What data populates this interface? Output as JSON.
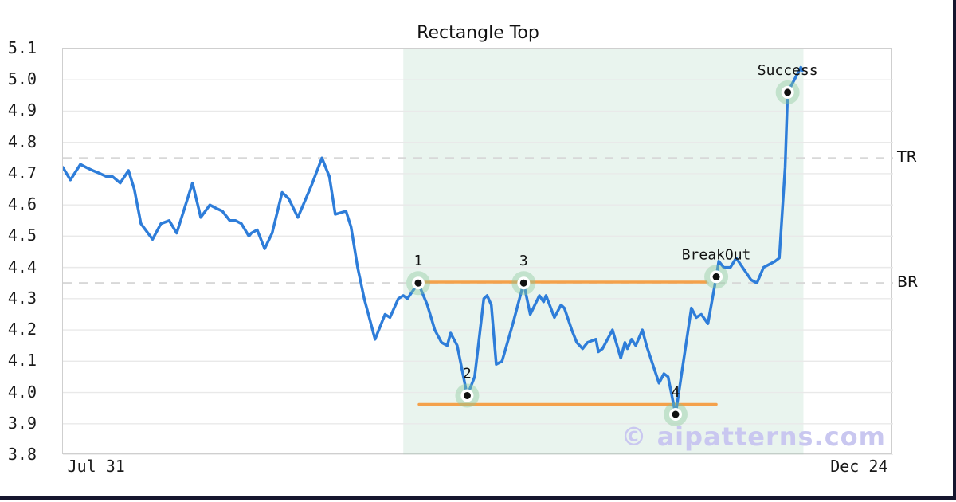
{
  "title": "Rectangle Top",
  "watermark": "© aipatterns.com",
  "colors": {
    "line": "#2e7dd9",
    "pattern_line": "#f4a14b",
    "level_dash": "#d8d8d8",
    "grid": "#e9e9e9",
    "zone_fill": "rgba(155,205,178,0.22)",
    "marker_halo": "rgba(135,200,152,0.40)",
    "marker_ring": "#ffffff",
    "marker_dot": "#111111",
    "watermark": "#c9c7f0",
    "frame": "#16162e",
    "text": "#111111"
  },
  "chart_data": {
    "type": "line",
    "title": "Rectangle Top",
    "x_axis": {
      "start_label": "Jul 31",
      "end_label": "Dec 24",
      "ticks": [
        {
          "pos": 0.041,
          "label": "Jul 31"
        },
        {
          "pos": 0.96,
          "label": "Dec 24"
        }
      ]
    },
    "y_axis": {
      "min": 3.8,
      "max": 5.1,
      "tick_step": 0.1,
      "tick_labels": [
        "5.1",
        "5.0",
        "4.9",
        "4.8",
        "4.7",
        "4.6",
        "4.5",
        "4.4",
        "4.3",
        "4.2",
        "4.1",
        "4.0",
        "3.9",
        "3.8"
      ],
      "grid": true
    },
    "series": [
      {
        "name": "price",
        "points": [
          [
            0.0,
            4.72
          ],
          [
            0.009,
            4.68
          ],
          [
            0.021,
            4.73
          ],
          [
            0.028,
            4.72
          ],
          [
            0.036,
            4.71
          ],
          [
            0.045,
            4.7
          ],
          [
            0.053,
            4.69
          ],
          [
            0.06,
            4.69
          ],
          [
            0.069,
            4.67
          ],
          [
            0.079,
            4.71
          ],
          [
            0.086,
            4.65
          ],
          [
            0.094,
            4.54
          ],
          [
            0.108,
            4.49
          ],
          [
            0.118,
            4.54
          ],
          [
            0.128,
            4.55
          ],
          [
            0.137,
            4.51
          ],
          [
            0.156,
            4.67
          ],
          [
            0.166,
            4.56
          ],
          [
            0.177,
            4.6
          ],
          [
            0.184,
            4.59
          ],
          [
            0.192,
            4.58
          ],
          [
            0.201,
            4.55
          ],
          [
            0.208,
            4.55
          ],
          [
            0.215,
            4.54
          ],
          [
            0.224,
            4.5
          ],
          [
            0.227,
            4.51
          ],
          [
            0.234,
            4.52
          ],
          [
            0.243,
            4.46
          ],
          [
            0.252,
            4.51
          ],
          [
            0.264,
            4.64
          ],
          [
            0.272,
            4.62
          ],
          [
            0.283,
            4.56
          ],
          [
            0.299,
            4.66
          ],
          [
            0.312,
            4.75
          ],
          [
            0.321,
            4.69
          ],
          [
            0.328,
            4.57
          ],
          [
            0.341,
            4.58
          ],
          [
            0.347,
            4.53
          ],
          [
            0.355,
            4.4
          ],
          [
            0.363,
            4.3
          ],
          [
            0.376,
            4.17
          ],
          [
            0.388,
            4.25
          ],
          [
            0.394,
            4.24
          ],
          [
            0.404,
            4.3
          ],
          [
            0.41,
            4.31
          ],
          [
            0.415,
            4.3
          ],
          [
            0.428,
            4.35
          ],
          [
            0.439,
            4.28
          ],
          [
            0.448,
            4.2
          ],
          [
            0.456,
            4.16
          ],
          [
            0.463,
            4.15
          ],
          [
            0.467,
            4.19
          ],
          [
            0.475,
            4.15
          ],
          [
            0.487,
            3.99
          ],
          [
            0.496,
            4.05
          ],
          [
            0.507,
            4.3
          ],
          [
            0.511,
            4.31
          ],
          [
            0.516,
            4.28
          ],
          [
            0.522,
            4.09
          ],
          [
            0.529,
            4.1
          ],
          [
            0.542,
            4.22
          ],
          [
            0.555,
            4.35
          ],
          [
            0.563,
            4.25
          ],
          [
            0.574,
            4.31
          ],
          [
            0.579,
            4.29
          ],
          [
            0.582,
            4.31
          ],
          [
            0.592,
            4.24
          ],
          [
            0.6,
            4.28
          ],
          [
            0.604,
            4.27
          ],
          [
            0.613,
            4.2
          ],
          [
            0.619,
            4.16
          ],
          [
            0.626,
            4.14
          ],
          [
            0.632,
            4.16
          ],
          [
            0.642,
            4.17
          ],
          [
            0.645,
            4.13
          ],
          [
            0.65,
            4.14
          ],
          [
            0.662,
            4.2
          ],
          [
            0.672,
            4.11
          ],
          [
            0.677,
            4.16
          ],
          [
            0.68,
            4.14
          ],
          [
            0.685,
            4.17
          ],
          [
            0.69,
            4.15
          ],
          [
            0.698,
            4.2
          ],
          [
            0.703,
            4.15
          ],
          [
            0.718,
            4.03
          ],
          [
            0.724,
            4.06
          ],
          [
            0.729,
            4.05
          ],
          [
            0.738,
            3.93
          ],
          [
            0.757,
            4.27
          ],
          [
            0.763,
            4.24
          ],
          [
            0.769,
            4.25
          ],
          [
            0.777,
            4.22
          ],
          [
            0.787,
            4.37
          ],
          [
            0.79,
            4.42
          ],
          [
            0.796,
            4.4
          ],
          [
            0.804,
            4.4
          ],
          [
            0.811,
            4.43
          ],
          [
            0.829,
            4.36
          ],
          [
            0.836,
            4.35
          ],
          [
            0.844,
            4.4
          ],
          [
            0.858,
            4.42
          ],
          [
            0.863,
            4.43
          ],
          [
            0.87,
            4.72
          ],
          [
            0.873,
            4.96
          ],
          [
            0.889,
            5.04
          ],
          [
            0.891,
            5.03
          ]
        ]
      }
    ],
    "levels": [
      {
        "label": "TR",
        "value": 4.75
      },
      {
        "label": "BR",
        "value": 4.35
      }
    ],
    "pattern_lines": [
      {
        "name": "rectangle-top-line",
        "value": 4.353,
        "x0": 0.428,
        "x1": 0.775
      },
      {
        "name": "rectangle-bottom-line",
        "value": 3.962,
        "x0": 0.429,
        "x1": 0.787
      }
    ],
    "zone": {
      "x0": 0.41,
      "x1": 0.892
    },
    "markers": [
      {
        "label": "1",
        "pos": 0.428,
        "value": 4.35
      },
      {
        "label": "2",
        "pos": 0.487,
        "value": 3.99
      },
      {
        "label": "3",
        "pos": 0.555,
        "value": 4.35
      },
      {
        "label": "4",
        "pos": 0.738,
        "value": 3.93
      },
      {
        "label": "BreakOut",
        "pos": 0.787,
        "value": 4.37
      },
      {
        "label": "Success",
        "pos": 0.873,
        "value": 4.96
      }
    ]
  }
}
